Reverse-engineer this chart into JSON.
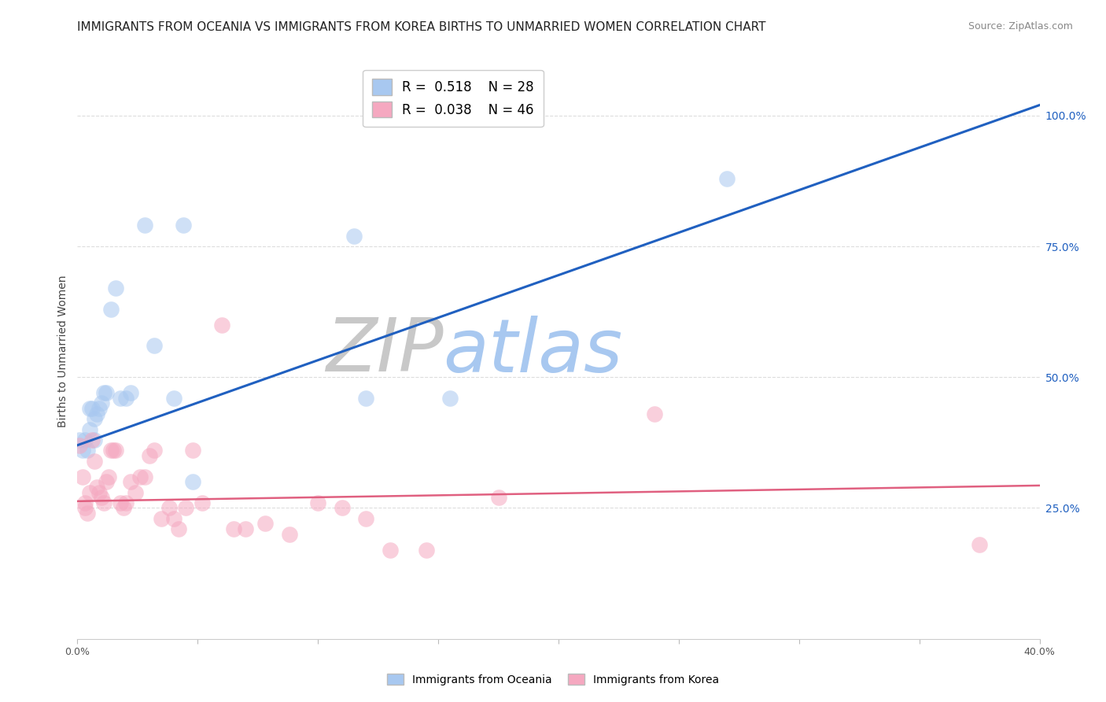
{
  "title": "IMMIGRANTS FROM OCEANIA VS IMMIGRANTS FROM KOREA BIRTHS TO UNMARRIED WOMEN CORRELATION CHART",
  "source": "Source: ZipAtlas.com",
  "ylabel": "Births to Unmarried Women",
  "xmin": 0.0,
  "xmax": 0.4,
  "ymin": 0.0,
  "ymax": 1.1,
  "yticks": [
    0.25,
    0.5,
    0.75,
    1.0
  ],
  "ytick_labels": [
    "25.0%",
    "50.0%",
    "75.0%",
    "100.0%"
  ],
  "xticks": [
    0.0,
    0.05,
    0.1,
    0.15,
    0.2,
    0.25,
    0.3,
    0.35,
    0.4
  ],
  "xtick_labels": [
    "0.0%",
    "",
    "",
    "",
    "",
    "",
    "",
    "",
    "40.0%"
  ],
  "oceania_color": "#a8c8f0",
  "korea_color": "#f5a8c0",
  "oceania_line_color": "#2060c0",
  "korea_line_color": "#e06080",
  "watermark_zip_color": "#c8c8c8",
  "watermark_atlas_color": "#a8c8f0",
  "legend_oceania_label": "R =  0.518    N = 28",
  "legend_korea_label": "R =  0.038    N = 46",
  "oceania_scatter_x": [
    0.001,
    0.002,
    0.003,
    0.004,
    0.005,
    0.005,
    0.006,
    0.007,
    0.007,
    0.008,
    0.009,
    0.01,
    0.011,
    0.012,
    0.014,
    0.016,
    0.018,
    0.02,
    0.022,
    0.028,
    0.032,
    0.04,
    0.044,
    0.048,
    0.115,
    0.12,
    0.155,
    0.27
  ],
  "oceania_scatter_y": [
    0.38,
    0.36,
    0.38,
    0.36,
    0.4,
    0.44,
    0.44,
    0.38,
    0.42,
    0.43,
    0.44,
    0.45,
    0.47,
    0.47,
    0.63,
    0.67,
    0.46,
    0.46,
    0.47,
    0.79,
    0.56,
    0.46,
    0.79,
    0.3,
    0.77,
    0.46,
    0.46,
    0.88
  ],
  "korea_scatter_x": [
    0.001,
    0.002,
    0.003,
    0.003,
    0.004,
    0.005,
    0.006,
    0.007,
    0.008,
    0.009,
    0.01,
    0.011,
    0.012,
    0.013,
    0.014,
    0.015,
    0.016,
    0.018,
    0.019,
    0.02,
    0.022,
    0.024,
    0.026,
    0.028,
    0.03,
    0.032,
    0.035,
    0.038,
    0.04,
    0.042,
    0.045,
    0.048,
    0.052,
    0.06,
    0.065,
    0.07,
    0.078,
    0.088,
    0.1,
    0.11,
    0.12,
    0.13,
    0.145,
    0.175,
    0.24,
    0.375
  ],
  "korea_scatter_y": [
    0.37,
    0.31,
    0.26,
    0.25,
    0.24,
    0.28,
    0.38,
    0.34,
    0.29,
    0.28,
    0.27,
    0.26,
    0.3,
    0.31,
    0.36,
    0.36,
    0.36,
    0.26,
    0.25,
    0.26,
    0.3,
    0.28,
    0.31,
    0.31,
    0.35,
    0.36,
    0.23,
    0.25,
    0.23,
    0.21,
    0.25,
    0.36,
    0.26,
    0.6,
    0.21,
    0.21,
    0.22,
    0.2,
    0.26,
    0.25,
    0.23,
    0.17,
    0.17,
    0.27,
    0.43,
    0.18
  ],
  "oceania_trend_x": [
    0.0,
    0.4
  ],
  "oceania_trend_y": [
    0.37,
    1.02
  ],
  "korea_trend_x": [
    0.0,
    0.4
  ],
  "korea_trend_y": [
    0.263,
    0.293
  ],
  "background_color": "#ffffff",
  "grid_color": "#dddddd",
  "grid_linestyle": "--",
  "title_fontsize": 11,
  "axis_fontsize": 9,
  "legend_fontsize": 12,
  "scatter_size": 220,
  "scatter_alpha": 0.55
}
